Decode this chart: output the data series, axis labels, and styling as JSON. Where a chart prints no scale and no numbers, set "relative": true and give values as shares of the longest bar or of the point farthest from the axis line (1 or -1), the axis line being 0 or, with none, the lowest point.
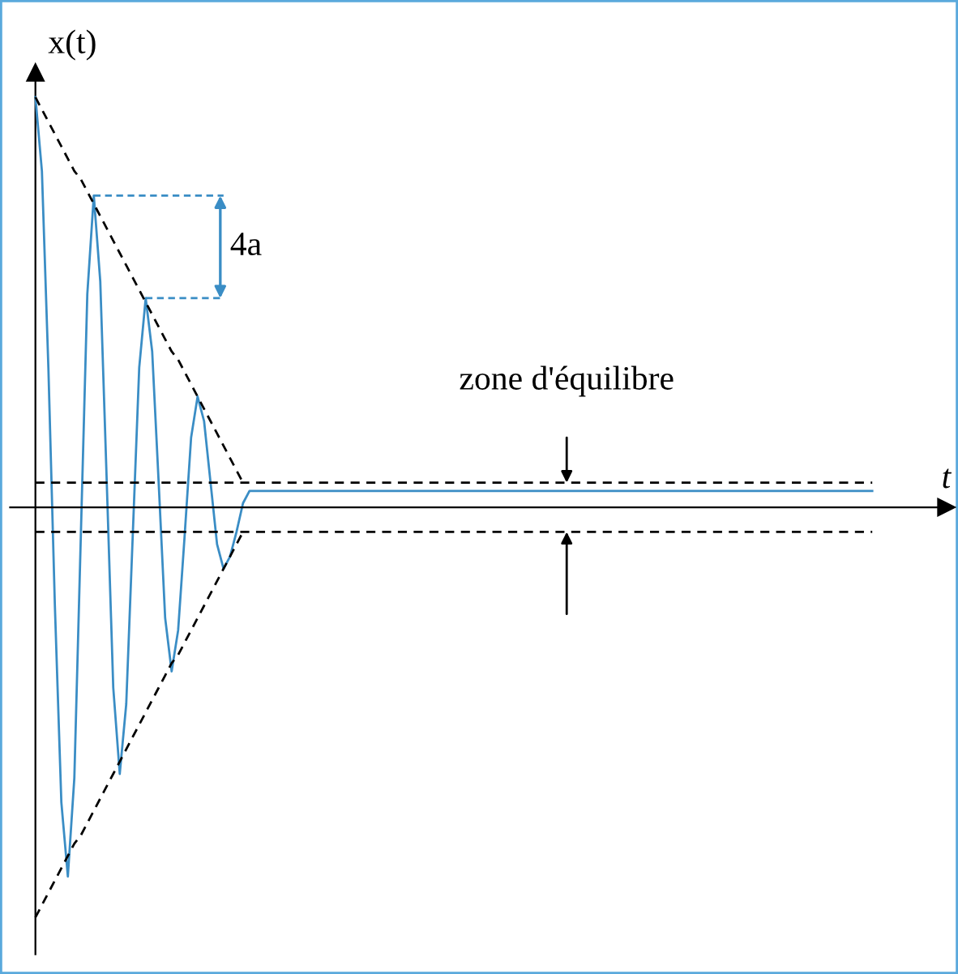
{
  "chart_data": {
    "type": "line",
    "relative": true,
    "xlabel": "t",
    "ylabel": "x(t)",
    "categories": [
      null,
      null,
      null,
      null,
      null,
      null,
      null,
      null,
      null,
      null,
      null,
      null,
      null,
      null,
      null,
      null,
      null,
      null,
      null,
      null,
      null,
      null,
      null,
      null,
      null,
      null,
      null,
      null,
      null,
      null,
      null,
      null,
      null,
      null,
      null,
      null,
      null,
      null,
      null,
      null,
      null,
      null,
      null,
      null,
      null,
      null,
      null,
      null,
      null,
      null,
      null,
      null,
      null,
      null,
      null,
      null,
      null,
      null,
      null,
      null,
      null,
      null,
      null,
      null,
      null,
      null,
      null,
      null,
      null,
      null,
      null,
      null,
      null,
      null,
      null,
      null,
      null,
      null,
      null,
      null,
      null,
      null,
      null,
      null,
      null,
      null,
      null,
      null,
      null,
      null,
      null,
      null,
      null,
      null,
      null,
      null,
      null,
      null,
      null,
      null,
      null,
      null,
      null,
      null,
      null,
      null,
      null,
      null,
      null,
      null,
      null,
      null,
      null,
      null,
      null,
      null,
      null,
      null,
      null,
      null,
      null,
      null,
      null,
      null,
      null,
      null,
      null,
      null,
      null,
      null
    ],
    "series": [
      {
        "color": "#3a8dc5",
        "line_style": "solid",
        "values": [
          1.0,
          0.82,
          0.34,
          -0.24,
          -0.72,
          -0.9,
          -0.66,
          -0.07,
          0.52,
          0.76,
          0.55,
          0.06,
          -0.44,
          -0.65,
          -0.48,
          -0.07,
          0.34,
          0.51,
          0.38,
          0.06,
          -0.27,
          -0.4,
          -0.3,
          -0.07,
          0.17,
          0.27,
          0.21,
          0.06,
          -0.09,
          -0.15,
          -0.12,
          -0.06,
          0.01,
          0.04,
          0.04,
          0.04,
          0.04,
          0.04,
          0.04,
          0.04,
          0.04,
          0.04,
          0.04,
          0.04,
          0.04,
          0.04,
          0.04,
          0.04,
          0.04,
          0.04,
          0.04,
          0.04,
          0.04,
          0.04,
          0.04,
          0.04,
          0.04,
          0.04,
          0.04,
          0.04,
          0.04,
          0.04,
          0.04,
          0.04,
          0.04,
          0.04,
          0.04,
          0.04,
          0.04,
          0.04,
          0.04,
          0.04,
          0.04,
          0.04,
          0.04,
          0.04,
          0.04,
          0.04,
          0.04,
          0.04,
          0.04,
          0.04,
          0.04,
          0.04,
          0.04,
          0.04,
          0.04,
          0.04,
          0.04,
          0.04,
          0.04,
          0.04,
          0.04,
          0.04,
          0.04,
          0.04,
          0.04,
          0.04,
          0.04,
          0.04,
          0.04,
          0.04,
          0.04,
          0.04,
          0.04,
          0.04,
          0.04,
          0.04,
          0.04,
          0.04,
          0.04,
          0.04,
          0.04,
          0.04,
          0.04,
          0.04,
          0.04,
          0.04,
          0.04,
          0.04,
          0.04,
          0.04,
          0.04,
          0.04,
          0.04,
          0.04,
          0.04,
          0.04,
          0.04,
          0.04
        ]
      },
      {
        "color": "#000000",
        "line_style": "dashed",
        "values": [
          1.0,
          0.97,
          0.94,
          0.91,
          0.88,
          0.85,
          0.82,
          0.8,
          0.77,
          0.74,
          0.71,
          0.68,
          0.65,
          0.62,
          0.59,
          0.56,
          0.53,
          0.5,
          0.47,
          0.44,
          0.41,
          0.38,
          0.36,
          0.33,
          0.3,
          0.27,
          0.24,
          0.21,
          0.18,
          0.15,
          0.12,
          0.09,
          0.06,
          null,
          null,
          null,
          null,
          null,
          null,
          null,
          null,
          null,
          null,
          null,
          null,
          null,
          null,
          null,
          null,
          null,
          null,
          null,
          null,
          null,
          null,
          null,
          null,
          null,
          null,
          null,
          null,
          null,
          null,
          null,
          null,
          null,
          null,
          null,
          null,
          null,
          null,
          null,
          null,
          null,
          null,
          null,
          null,
          null,
          null,
          null,
          null,
          null,
          null,
          null,
          null,
          null,
          null,
          null,
          null,
          null,
          null,
          null,
          null,
          null,
          null,
          null,
          null,
          null,
          null,
          null,
          null,
          null,
          null,
          null,
          null,
          null,
          null,
          null,
          null,
          null,
          null,
          null,
          null,
          null,
          null,
          null,
          null,
          null,
          null,
          null,
          null,
          null,
          null,
          null,
          null,
          null,
          null,
          null,
          null,
          null
        ]
      },
      {
        "color": "#000000",
        "line_style": "dashed",
        "values": [
          -1.0,
          -0.97,
          -0.94,
          -0.91,
          -0.88,
          -0.85,
          -0.82,
          -0.8,
          -0.77,
          -0.74,
          -0.71,
          -0.68,
          -0.65,
          -0.62,
          -0.59,
          -0.56,
          -0.53,
          -0.5,
          -0.47,
          -0.44,
          -0.41,
          -0.38,
          -0.36,
          -0.33,
          -0.3,
          -0.27,
          -0.24,
          -0.21,
          -0.18,
          -0.15,
          -0.12,
          -0.09,
          -0.06,
          null,
          null,
          null,
          null,
          null,
          null,
          null,
          null,
          null,
          null,
          null,
          null,
          null,
          null,
          null,
          null,
          null,
          null,
          null,
          null,
          null,
          null,
          null,
          null,
          null,
          null,
          null,
          null,
          null,
          null,
          null,
          null,
          null,
          null,
          null,
          null,
          null,
          null,
          null,
          null,
          null,
          null,
          null,
          null,
          null,
          null,
          null,
          null,
          null,
          null,
          null,
          null,
          null,
          null,
          null,
          null,
          null,
          null,
          null,
          null,
          null,
          null,
          null,
          null,
          null,
          null,
          null,
          null,
          null,
          null,
          null,
          null,
          null,
          null,
          null,
          null,
          null,
          null,
          null,
          null,
          null,
          null,
          null,
          null,
          null,
          null,
          null,
          null,
          null,
          null,
          null,
          null,
          null,
          null,
          null,
          null,
          null
        ]
      }
    ],
    "ref_lines": [
      {
        "axis": "y",
        "value": 0.06,
        "line_style": "dashed",
        "color": "#000000"
      },
      {
        "axis": "y",
        "value": -0.06,
        "line_style": "dashed",
        "color": "#000000"
      }
    ],
    "annotations": [
      "4a",
      "zone d'équilibre"
    ]
  }
}
